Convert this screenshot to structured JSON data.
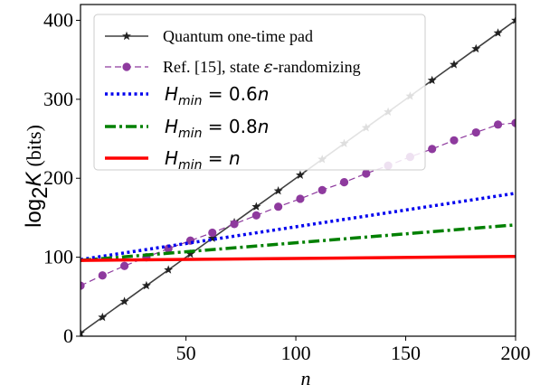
{
  "chart_data": {
    "type": "line",
    "xlabel": "n",
    "ylabel": "log",
    "ylabel_sub": "2",
    "ylabel_var": "K",
    "ylabel_unit": "(bits)",
    "xlim": [
      2,
      200
    ],
    "ylim": [
      0,
      420
    ],
    "xticks": [
      50,
      100,
      150,
      200
    ],
    "yticks": [
      0,
      100,
      200,
      300,
      400
    ],
    "grid": false,
    "legend": "top-left",
    "x": [
      2,
      12,
      22,
      32,
      42,
      52,
      62,
      72,
      82,
      92,
      102,
      112,
      122,
      132,
      142,
      152,
      162,
      172,
      182,
      192,
      200
    ],
    "series": [
      {
        "name": "Quantum one-time pad",
        "color": "#404040",
        "style": "solid",
        "marker": "star",
        "values": [
          4,
          24,
          44,
          64,
          84,
          104,
          124,
          144,
          164,
          184,
          204,
          224,
          244,
          264,
          284,
          304,
          324,
          344,
          364,
          384,
          400
        ]
      },
      {
        "name": "Ref. [15], state ε-randomizing",
        "name_parts": [
          "Ref. [15], state ",
          "ε",
          "-randomizing"
        ],
        "color": "#8e3a9e",
        "style": "dashed",
        "marker": "circle",
        "values": [
          64,
          77,
          89,
          100,
          111,
          121,
          131,
          142,
          153,
          164,
          174,
          185,
          195,
          206,
          216,
          227,
          237,
          248,
          258,
          268,
          270
        ]
      },
      {
        "name": "H_min = 0.6n",
        "name_parts": [
          "H",
          "min",
          " = 0.6",
          "n"
        ],
        "color": "#0000ee",
        "style": "dotted",
        "marker": "none",
        "x": [
          2,
          200
        ],
        "values": [
          97,
          181
        ]
      },
      {
        "name": "H_min = 0.8n",
        "name_parts": [
          "H",
          "min",
          " = 0.8",
          "n"
        ],
        "color": "#008000",
        "style": "dashdot",
        "marker": "none",
        "x": [
          2,
          200
        ],
        "values": [
          96,
          141
        ]
      },
      {
        "name": "H_min = n",
        "name_parts": [
          "H",
          "min",
          " = ",
          "n"
        ],
        "color": "#ff0000",
        "style": "solid",
        "marker": "none",
        "x": [
          2,
          200
        ],
        "values": [
          96,
          101
        ]
      }
    ]
  }
}
